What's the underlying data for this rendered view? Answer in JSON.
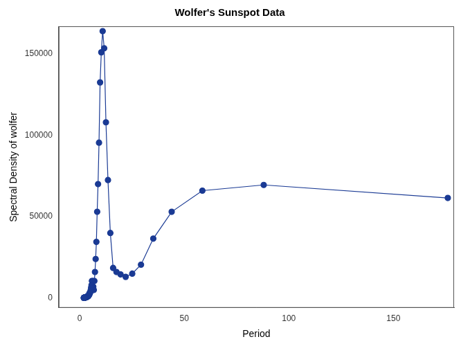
{
  "chart_data": {
    "type": "line",
    "title": "Wolfer's Sunspot Data",
    "x_label": "Period",
    "y_label": "Spectral Density of wolfer",
    "x": [
      176,
      88,
      58.67,
      44,
      35.2,
      29.33,
      25.14,
      22,
      19.56,
      17.6,
      16,
      14.67,
      13.54,
      12.57,
      11.73,
      11,
      10.35,
      9.78,
      9.26,
      8.8,
      8.38,
      8,
      7.65,
      7.33,
      7.04,
      6.77,
      6.52,
      6.29,
      6.07,
      5.87,
      5.68,
      5.5,
      5.33,
      5.18,
      5.03,
      4.89,
      4.76,
      4.63,
      4.51,
      4.4,
      4.29,
      4.19,
      4.09,
      4,
      3.91,
      3.83,
      3.74,
      3.67,
      3.59,
      3.52,
      3.45,
      3.38,
      3.32,
      3.26,
      3.2,
      3.14,
      3.09,
      3.03,
      2.98,
      2.93,
      2.89,
      2.84,
      2.79,
      2.75,
      2.71,
      2.67,
      2.63,
      2.59,
      2.55,
      2.51,
      2.48,
      2.44,
      2.41,
      2.38,
      2.35,
      2.32,
      2.29,
      2.26,
      2.23,
      2.2,
      2.17,
      2.15,
      2.12,
      2.1,
      2.07,
      2.05,
      2.02,
      2
    ],
    "values": [
      61500,
      69500,
      66000,
      53000,
      36500,
      20500,
      15000,
      13000,
      14500,
      16000,
      18500,
      40000,
      72500,
      108000,
      153500,
      164000,
      151000,
      132500,
      95500,
      70000,
      53000,
      34500,
      24000,
      16000,
      10500,
      5000,
      7000,
      10500,
      7500,
      10500,
      8000,
      6500,
      5000,
      4000,
      3500,
      3000,
      2500,
      2800,
      2000,
      1800,
      1500,
      1200,
      1400,
      1000,
      1100,
      900,
      1000,
      800,
      900,
      700,
      800,
      600,
      700,
      600,
      500,
      600,
      500,
      550,
      450,
      500,
      400,
      450,
      400,
      350,
      400,
      300,
      350,
      300,
      300,
      250,
      300,
      250,
      250,
      200,
      250,
      200,
      200,
      200,
      150,
      200,
      150,
      150,
      150,
      100,
      150,
      100,
      100,
      100
    ],
    "color": "#1a3a94",
    "marker": "circle",
    "line_style": "solid",
    "xlim": [
      -10,
      179
    ],
    "xticks": [
      0,
      50,
      100,
      150
    ],
    "ylim": [
      -6000,
      167000
    ],
    "yticks": [
      0,
      50000,
      100000,
      150000
    ],
    "grid": false
  }
}
